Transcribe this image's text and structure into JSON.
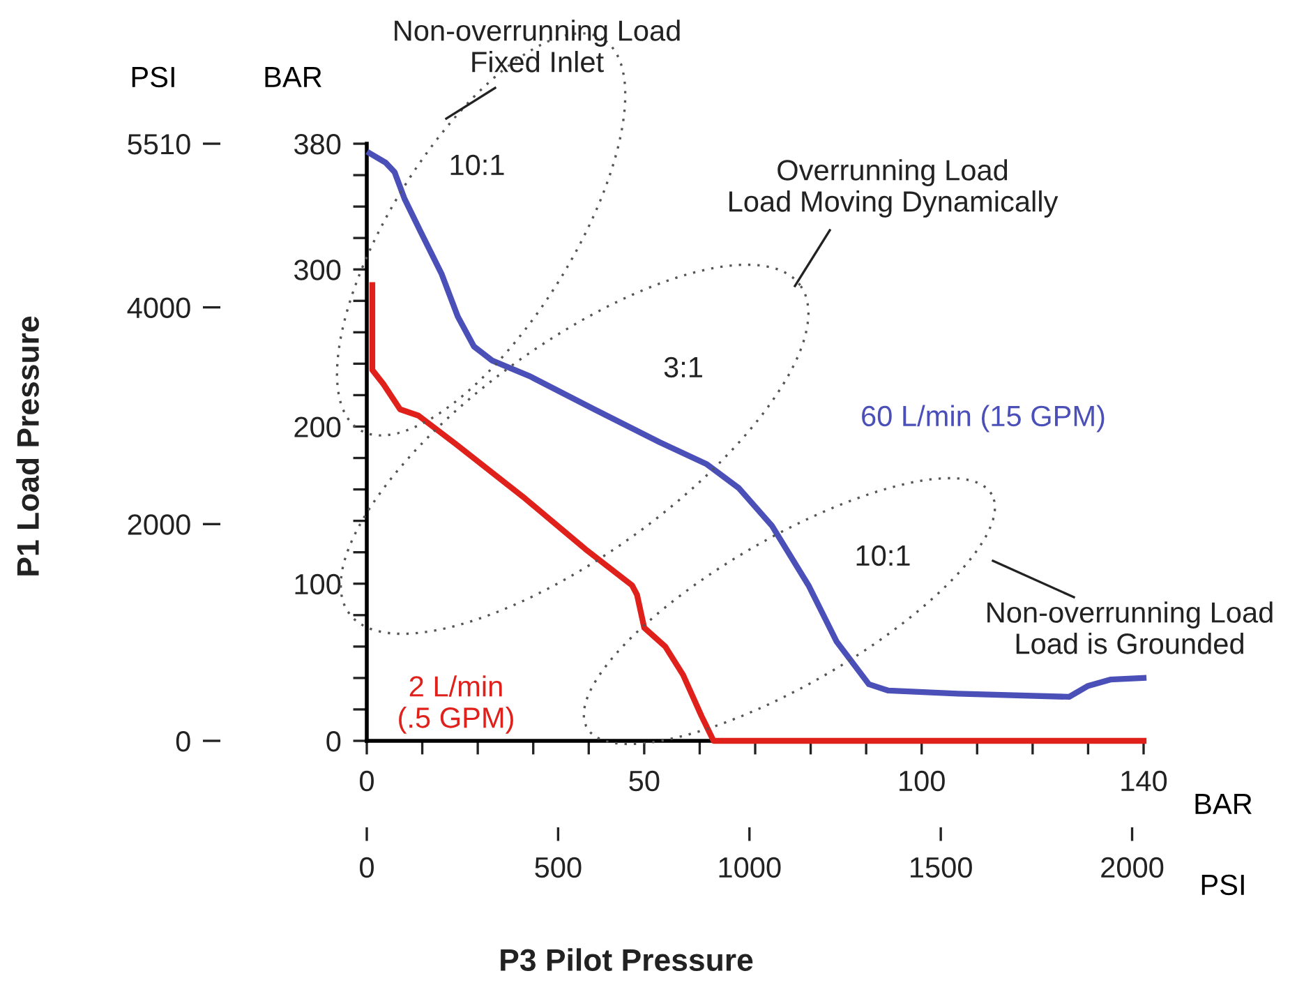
{
  "chart_data": {
    "type": "line",
    "xlabel": "BAR",
    "x2label": "PSI",
    "ylabel": "BAR",
    "y2label": "PSI",
    "annotations": [
      "P1 Load Pressure",
      "P3 Pilot Pressure",
      "Non-overrunning Load\nFixed Inlet",
      "10:1",
      "Overrunning Load\nLoad Moving Dynamically",
      "3:1",
      "10:1",
      "Non-overrunning Load\nLoad is Grounded"
    ],
    "xlim": [
      0,
      140
    ],
    "xticks": [
      0,
      {
        "value": 10,
        "label": null
      },
      {
        "value": 20,
        "label": null
      },
      {
        "value": 30,
        "label": null
      },
      {
        "value": 40,
        "label": null
      },
      50,
      {
        "value": 60,
        "label": null
      },
      {
        "value": 70,
        "label": null
      },
      {
        "value": 80,
        "label": null
      },
      {
        "value": 90,
        "label": null
      },
      100,
      {
        "value": 110,
        "label": null
      },
      {
        "value": 120,
        "label": null
      },
      {
        "value": 130,
        "label": null
      },
      140
    ],
    "x2lim": [
      0,
      2030
    ],
    "x2ticks": [
      0,
      500,
      1000,
      1500,
      2000
    ],
    "ylim": [
      0,
      380
    ],
    "yticks": [
      0,
      {
        "value": 20,
        "label": null
      },
      {
        "value": 40,
        "label": null
      },
      {
        "value": 60,
        "label": null
      },
      {
        "value": 80,
        "label": null
      },
      100,
      {
        "value": 120,
        "label": null
      },
      {
        "value": 140,
        "label": null
      },
      {
        "value": 160,
        "label": null
      },
      {
        "value": 180,
        "label": null
      },
      200,
      {
        "value": 220,
        "label": null
      },
      {
        "value": 240,
        "label": null
      },
      {
        "value": 260,
        "label": null
      },
      {
        "value": 280,
        "label": null
      },
      300,
      {
        "value": 320,
        "label": null
      },
      {
        "value": 340,
        "label": null
      },
      {
        "value": 360,
        "label": null
      },
      380
    ],
    "y2lim": [
      0,
      5510
    ],
    "y2ticks": [
      0,
      2000,
      4000,
      5510
    ],
    "series": [
      {
        "name": "60 L/min (15 GPM)",
        "color": "#4b4fb8",
        "x": [
          0.5,
          3.4,
          5,
          6.8,
          9.7,
          13.5,
          16.4,
          19.3,
          22.6,
          29.4,
          41,
          52.8,
          61.3,
          67,
          73,
          79.6,
          84.7,
          90.5,
          94,
          106.5,
          126.6,
          130,
          134,
          140
        ],
        "values": [
          374,
          368,
          362,
          345,
          324,
          297,
          270,
          251,
          242,
          232,
          211,
          190,
          176,
          161,
          137,
          99,
          63,
          36,
          32,
          30,
          28,
          35,
          39,
          40
        ]
      },
      {
        "name": "2 L/min\n(.5 GPM)",
        "color": "#e0201b",
        "x": [
          1,
          1,
          3,
          6,
          9.3,
          16,
          28.6,
          39.4,
          47.8,
          48.7,
          50,
          53.8,
          57,
          60.3,
          62.5,
          140
        ],
        "values": [
          290,
          236,
          227,
          211,
          207,
          189,
          154,
          122,
          99,
          93,
          72,
          60,
          42,
          16,
          0,
          0
        ]
      }
    ]
  }
}
